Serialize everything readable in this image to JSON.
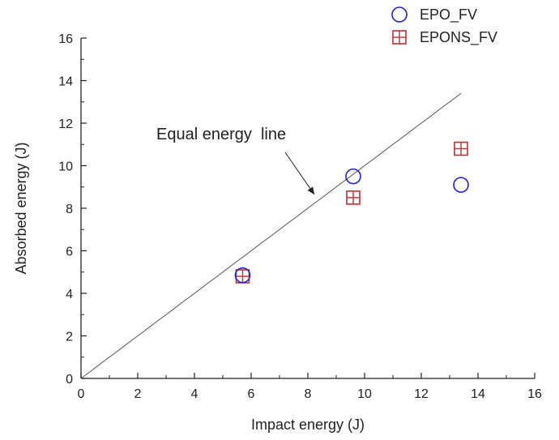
{
  "chart_data": {
    "type": "scatter",
    "xlabel": "Impact energy (J)",
    "ylabel": "Absorbed energy (J)",
    "xlim": [
      0,
      16
    ],
    "ylim": [
      0,
      16
    ],
    "xticks": [
      0,
      2,
      4,
      6,
      8,
      10,
      12,
      14,
      16
    ],
    "yticks": [
      0,
      2,
      4,
      6,
      8,
      10,
      12,
      14,
      16
    ],
    "legend_position": "top-right",
    "series": [
      {
        "name": "EPO_FV",
        "marker": "circle",
        "color": "#2222cc",
        "points": [
          {
            "x": 5.7,
            "y": 4.85
          },
          {
            "x": 9.6,
            "y": 9.5
          },
          {
            "x": 13.4,
            "y": 9.1
          }
        ]
      },
      {
        "name": "EPONS_FV",
        "marker": "crossed-square",
        "color": "#c03030",
        "points": [
          {
            "x": 5.7,
            "y": 4.8
          },
          {
            "x": 9.6,
            "y": 8.5
          },
          {
            "x": 13.4,
            "y": 10.8
          }
        ]
      }
    ],
    "reference_line": {
      "label": "Equal energy  line",
      "from": [
        0,
        0
      ],
      "to": [
        13.4,
        13.4
      ]
    }
  }
}
